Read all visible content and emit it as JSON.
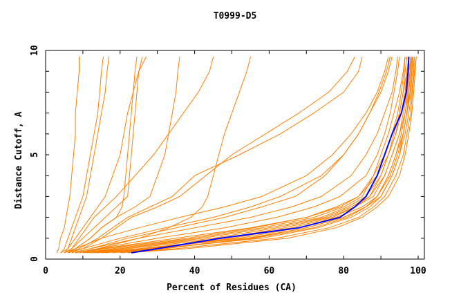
{
  "chart_data": {
    "type": "line",
    "title": "T0999-D5",
    "xlabel": "Percent of Residues (CA)",
    "ylabel": "Distance Cutoff, A",
    "xlim": [
      0,
      100
    ],
    "ylim": [
      0,
      10
    ],
    "xticks": [
      "0",
      "20",
      "40",
      "60",
      "80",
      "100"
    ],
    "yticks": [
      "0",
      "5",
      "10"
    ],
    "grid": false,
    "colors": {
      "models": "#ff8000",
      "highlight": "#0000ff"
    },
    "y": [
      0.3,
      0.5,
      1,
      1.5,
      2,
      2.5,
      3,
      4,
      5,
      6,
      7,
      8,
      9,
      9.7
    ],
    "highlight_series": {
      "x": [
        23,
        30,
        47,
        68,
        79,
        83,
        86,
        89,
        91,
        93,
        95.5,
        96.8,
        97.3,
        97.5
      ]
    },
    "series": [
      {
        "x": [
          3,
          3.5,
          4,
          5,
          5.5,
          6,
          6.5,
          7,
          7.5,
          8,
          8,
          8.5,
          9,
          9
        ]
      },
      {
        "x": [
          4,
          5,
          6,
          7,
          8,
          9,
          10,
          11,
          12,
          13,
          14,
          14.5,
          15,
          15.5
        ]
      },
      {
        "x": [
          5,
          6,
          7,
          8,
          9,
          10,
          11,
          12,
          13,
          14,
          15,
          16,
          16.5,
          17
        ]
      },
      {
        "x": [
          4,
          6,
          8,
          10,
          12,
          14,
          16,
          18,
          20,
          21,
          22,
          23.5,
          25,
          26
        ]
      },
      {
        "x": [
          5,
          7,
          10,
          13,
          16,
          19,
          22,
          22.5,
          23,
          23.5,
          24,
          24.5,
          25,
          27
        ]
      },
      {
        "x": [
          6,
          8,
          12,
          15,
          19,
          20.5,
          21,
          21.5,
          22,
          22.5,
          23,
          23.5,
          24,
          24.5
        ]
      },
      {
        "x": [
          5,
          8,
          12,
          15,
          19,
          24,
          28,
          30,
          32,
          33,
          34,
          35,
          35.5,
          36
        ]
      },
      {
        "x": [
          6,
          9,
          14,
          18,
          22,
          28,
          34,
          40,
          52,
          63,
          72,
          80,
          84,
          85
        ]
      },
      {
        "x": [
          6,
          10,
          15,
          19,
          23,
          30,
          36,
          43,
          50,
          59,
          68,
          76,
          81,
          83
        ]
      },
      {
        "x": [
          8,
          14,
          25,
          33,
          39,
          42,
          43.5,
          45,
          46.5,
          48,
          50,
          52,
          54,
          55
        ]
      },
      {
        "x": [
          5,
          7,
          9,
          11,
          13,
          16,
          19,
          24,
          29,
          33,
          37,
          41,
          44,
          45
        ]
      },
      {
        "x": [
          8,
          15,
          35,
          55,
          70,
          78,
          84,
          89,
          92,
          94,
          95,
          96,
          96.5,
          97
        ]
      },
      {
        "x": [
          10,
          20,
          45,
          62,
          75,
          82,
          87,
          91,
          93,
          95,
          96.5,
          97.5,
          98,
          98.5
        ]
      },
      {
        "x": [
          12,
          25,
          52,
          68,
          78,
          85,
          89,
          92,
          94,
          96,
          97,
          98,
          98.5,
          99
        ]
      },
      {
        "x": [
          15,
          30,
          58,
          73,
          82,
          87,
          90,
          93,
          95,
          96.5,
          97.5,
          98.3,
          98.8,
          99
        ]
      },
      {
        "x": [
          20,
          35,
          62,
          76,
          84,
          88,
          91,
          94,
          96,
          97,
          98,
          98.5,
          99,
          99.5
        ]
      },
      {
        "x": [
          8,
          14,
          30,
          48,
          62,
          72,
          79,
          86,
          89,
          91,
          92.5,
          93.5,
          94.5,
          95
        ]
      },
      {
        "x": [
          7,
          12,
          25,
          40,
          55,
          66,
          74,
          82,
          86,
          89,
          91,
          93,
          94,
          94.5
        ]
      },
      {
        "x": [
          6,
          10,
          20,
          32,
          45,
          55,
          63,
          74,
          80,
          84,
          87,
          89.5,
          91.5,
          92.5
        ]
      },
      {
        "x": [
          5,
          8,
          15,
          25,
          36,
          48,
          58,
          70,
          77,
          82,
          86,
          89,
          91,
          92
        ]
      },
      {
        "x": [
          10,
          18,
          40,
          58,
          72,
          80,
          85,
          88,
          90,
          92,
          93.5,
          95,
          96,
          96.5
        ]
      },
      {
        "x": [
          18,
          32,
          55,
          70,
          80,
          86,
          90,
          93,
          95,
          96,
          97,
          97.5,
          98,
          98.3
        ]
      },
      {
        "x": [
          14,
          28,
          50,
          66,
          77,
          83,
          88,
          91,
          93,
          95,
          96,
          97,
          97.5,
          98
        ]
      },
      {
        "x": [
          12,
          22,
          48,
          64,
          76,
          83,
          87,
          90,
          92,
          93.5,
          95,
          96,
          97,
          97.5
        ]
      },
      {
        "x": [
          11,
          20,
          42,
          60,
          74,
          81,
          86,
          90,
          92,
          94,
          95.5,
          96.5,
          97,
          97.5
        ]
      },
      {
        "x": [
          7,
          12,
          22,
          35,
          48,
          58,
          67,
          75,
          80,
          84,
          87,
          90,
          92,
          93
        ]
      },
      {
        "x": [
          16,
          30,
          56,
          72,
          81,
          86,
          89,
          92,
          94,
          95.5,
          96.5,
          97.2,
          97.8,
          98
        ]
      },
      {
        "x": [
          9,
          16,
          38,
          56,
          70,
          79,
          84,
          88,
          91,
          93,
          94.5,
          95.5,
          96.2,
          96.5
        ]
      },
      {
        "x": [
          13,
          26,
          54,
          70,
          80,
          86,
          89,
          92.5,
          94.5,
          96,
          97,
          97.8,
          98.3,
          98.6
        ]
      },
      {
        "x": [
          22,
          38,
          65,
          78,
          85,
          89,
          92,
          95,
          96.5,
          97.5,
          98.3,
          98.8,
          99.2,
          99.5
        ]
      }
    ]
  }
}
